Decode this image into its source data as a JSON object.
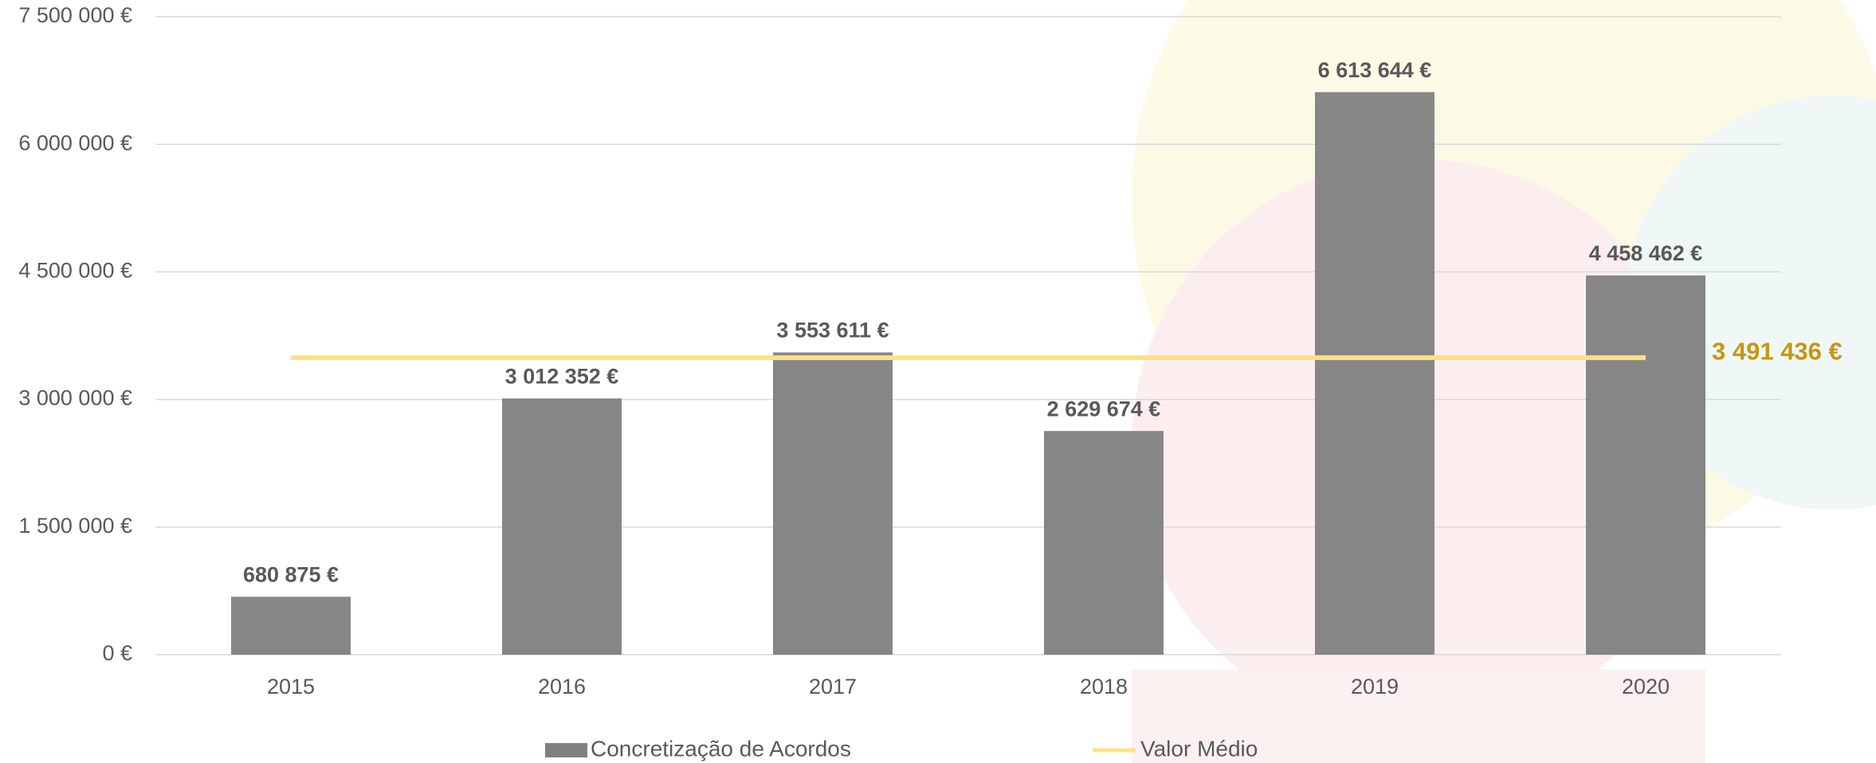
{
  "chart_data": {
    "type": "bar",
    "categories": [
      "2015",
      "2016",
      "2017",
      "2018",
      "2019",
      "2020"
    ],
    "series": [
      {
        "name": "Concretização de Acordos",
        "color": "#808080",
        "values": [
          680875,
          3012352,
          3553611,
          2629674,
          6613644,
          4458462
        ],
        "value_labels": [
          "680 875 €",
          "3 012 352 €",
          "3 553 611 €",
          "2 629 674 €",
          "6 613 644 €",
          "4 458 462 €"
        ]
      }
    ],
    "average": {
      "name": "Valor Médio",
      "value": 3491436,
      "label": "3 491 436 €",
      "color": "#ffe083",
      "label_color": "#c9950c"
    },
    "ylim": [
      0,
      7500000
    ],
    "yticks": [
      {
        "value": 0,
        "label": "0 €"
      },
      {
        "value": 1500000,
        "label": "1 500 000 €"
      },
      {
        "value": 3000000,
        "label": "3 000 000 €"
      },
      {
        "value": 4500000,
        "label": "4 500 000 €"
      },
      {
        "value": 6000000,
        "label": "6 000 000 €"
      },
      {
        "value": 7500000,
        "label": "7 500 000 €"
      }
    ],
    "grid": true,
    "legend": "bottom"
  }
}
